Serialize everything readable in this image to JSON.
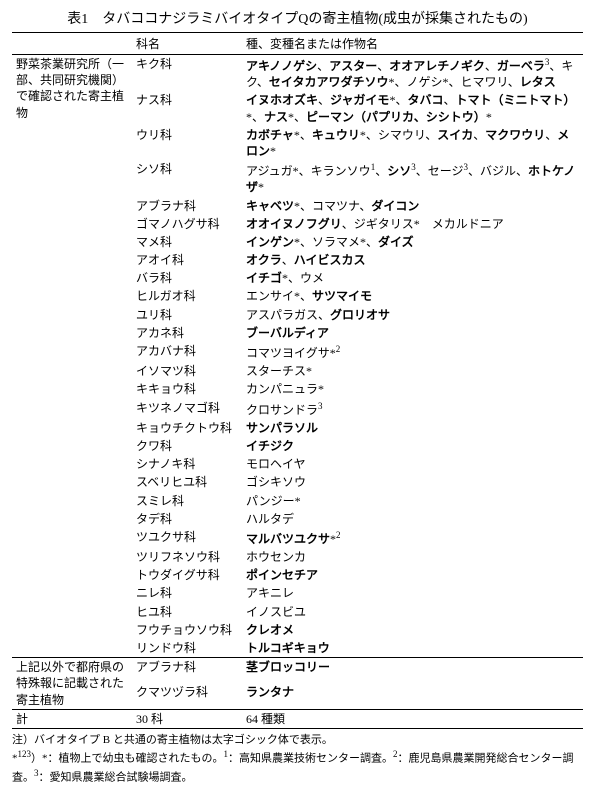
{
  "title": "表1　タバココナジラミバイオタイプQの寄主植物(成虫が採集されたもの)",
  "headers": {
    "group": "",
    "family": "科名",
    "species": "種、変種名または作物名"
  },
  "group1_label": "野菜茶業研究所（一部、共同研究機関）で確認された寄主植物",
  "group2_label": "上記以外で都府県の特殊報に記載された寄主植物",
  "g1": [
    {
      "family": "キク科",
      "species_html": "<b>アキノノゲシ</b>、<b>アスター</b>、<b>オオアレチノギク</b>、<b>ガーベラ</b><sup>3</sup>、キク、<b>セイタカアワダチソウ</b>*、ノゲシ*、ヒマワリ、<b>レタス</b>"
    },
    {
      "family": "ナス科",
      "species_html": "<b>イヌホオズキ</b>、<b>ジャガイモ</b>*、<b>タバコ</b>、<b>トマト（ミニトマト）</b>*、<b>ナス</b>*、<b>ピーマン（パプリカ、シシトウ）</b>*"
    },
    {
      "family": "ウリ科",
      "species_html": "<b>カボチャ</b>*、<b>キュウリ</b>*、シマウリ、<b>スイカ</b>、<b>マクワウリ</b>、<b>メロン</b>*"
    },
    {
      "family": "シソ科",
      "species_html": "アジュガ*、キランソウ<sup>1</sup>、<b>シソ</b><sup>3</sup>、セージ<sup>3</sup>、バジル、<b>ホトケノザ</b>*"
    },
    {
      "family": "アブラナ科",
      "species_html": "<b>キャベツ</b>*、コマツナ、<b>ダイコン</b>"
    },
    {
      "family": "ゴマノハグサ科",
      "species_html": "<b>オオイヌノフグリ</b>、ジギタリス*　メカルドニア"
    },
    {
      "family": "マメ科",
      "species_html": "<b>インゲン</b>*、ソラマメ*、<b>ダイズ</b>"
    },
    {
      "family": "アオイ科",
      "species_html": "<b>オクラ</b>、<b>ハイビスカス</b>"
    },
    {
      "family": "バラ科",
      "species_html": "<b>イチゴ</b>*、ウメ"
    },
    {
      "family": "ヒルガオ科",
      "species_html": "エンサイ*、<b>サツマイモ</b>"
    },
    {
      "family": "ユリ科",
      "species_html": "アスパラガス、<b>グロリオサ</b>"
    },
    {
      "family": "アカネ科",
      "species_html": "<b>ブーバルディア</b>"
    },
    {
      "family": "アカバナ科",
      "species_html": "コマツヨイグサ*<sup>2</sup>"
    },
    {
      "family": "イソマツ科",
      "species_html": "スターチス*"
    },
    {
      "family": "キキョウ科",
      "species_html": "カンパニュラ*"
    },
    {
      "family": "キツネノマゴ科",
      "species_html": "クロサンドラ<sup>3</sup>"
    },
    {
      "family": "キョウチクトウ科",
      "species_html": "<b>サンパラソル</b>"
    },
    {
      "family": "クワ科",
      "species_html": "<b>イチジク</b>"
    },
    {
      "family": "シナノキ科",
      "species_html": "モロヘイヤ"
    },
    {
      "family": "スベリヒユ科",
      "species_html": "ゴシキソウ"
    },
    {
      "family": "スミレ科",
      "species_html": "パンジー*"
    },
    {
      "family": "タデ科",
      "species_html": "ハルタデ"
    },
    {
      "family": "ツユクサ科",
      "species_html": "<b>マルバツユクサ</b>*<sup>2</sup>"
    },
    {
      "family": "ツリフネソウ科",
      "species_html": "ホウセンカ"
    },
    {
      "family": "トウダイグサ科",
      "species_html": "<b>ポインセチア</b>"
    },
    {
      "family": "ニレ科",
      "species_html": "アキニレ"
    },
    {
      "family": "ヒユ科",
      "species_html": "イノスビユ"
    },
    {
      "family": "フウチョウソウ科",
      "species_html": "<b>クレオメ</b>"
    },
    {
      "family": "リンドウ科",
      "species_html": "<b>トルコギキョウ</b>"
    }
  ],
  "g2": [
    {
      "family": "アブラナ科",
      "species_html": "<b>茎ブロッコリー</b>"
    },
    {
      "family": "クマツヅラ科",
      "species_html": "<b>ランタナ</b>"
    }
  ],
  "totals": {
    "label": "計",
    "families": "30 科",
    "species": "64 種類"
  },
  "notes": {
    "line1": "注）バイオタイプ B と共通の寄主植物は太字ゴシック体で表示。",
    "line2_html": "*<sup>123</sup>）*：植物上で幼虫も確認されたもの。<sup>1</sup>：高知県農業技術センター調査。<sup>2</sup>：鹿児島県農業開発総合センター調査。<sup>3</sup>：愛知県農業総合試験場調査。"
  }
}
